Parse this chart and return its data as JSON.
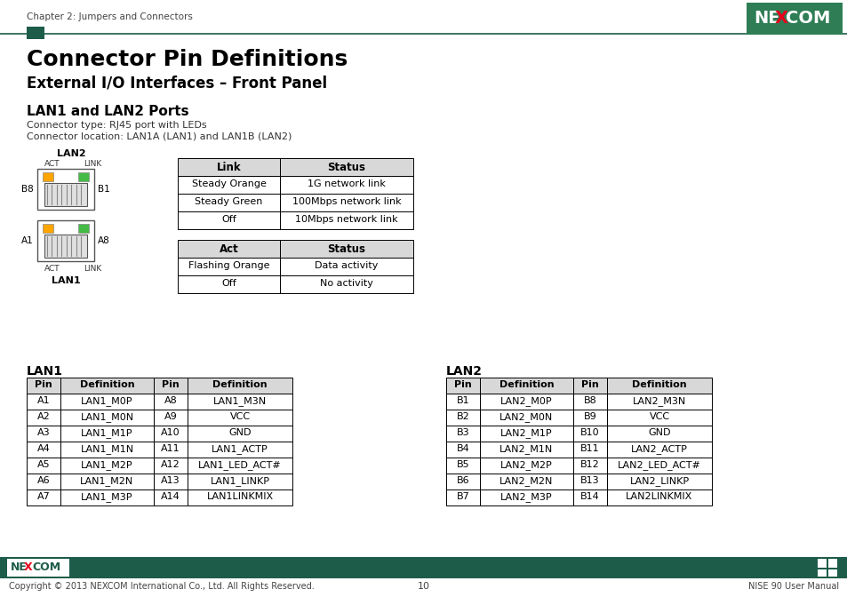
{
  "page_title": "Chapter 2: Jumpers and Connectors",
  "section_title": "Connector Pin Definitions",
  "subsection_title": "External I/O Interfaces – Front Panel",
  "sub2_title": "LAN1 and LAN2 Ports",
  "connector_info1": "Connector type: RJ45 port with LEDs",
  "connector_info2": "Connector location: LAN1A (LAN1) and LAN1B (LAN2)",
  "link_table_header": [
    "Link",
    "Status"
  ],
  "link_table_data": [
    [
      "Steady Orange",
      "1G network link"
    ],
    [
      "Steady Green",
      "100Mbps network link"
    ],
    [
      "Off",
      "10Mbps network link"
    ]
  ],
  "act_table_header": [
    "Act",
    "Status"
  ],
  "act_table_data": [
    [
      "Flashing Orange",
      "Data activity"
    ],
    [
      "Off",
      "No activity"
    ]
  ],
  "lan1_title": "LAN1",
  "lan1_table_header": [
    "Pin",
    "Definition",
    "Pin",
    "Definition"
  ],
  "lan1_table_data": [
    [
      "A1",
      "LAN1_M0P",
      "A8",
      "LAN1_M3N"
    ],
    [
      "A2",
      "LAN1_M0N",
      "A9",
      "VCC"
    ],
    [
      "A3",
      "LAN1_M1P",
      "A10",
      "GND"
    ],
    [
      "A4",
      "LAN1_M1N",
      "A11",
      "LAN1_ACTP"
    ],
    [
      "A5",
      "LAN1_M2P",
      "A12",
      "LAN1_LED_ACT#"
    ],
    [
      "A6",
      "LAN1_M2N",
      "A13",
      "LAN1_LINKP"
    ],
    [
      "A7",
      "LAN1_M3P",
      "A14",
      "LAN1LINKMIX"
    ]
  ],
  "lan2_title": "LAN2",
  "lan2_table_header": [
    "Pin",
    "Definition",
    "Pin",
    "Definition"
  ],
  "lan2_table_data": [
    [
      "B1",
      "LAN2_M0P",
      "B8",
      "LAN2_M3N"
    ],
    [
      "B2",
      "LAN2_M0N",
      "B9",
      "VCC"
    ],
    [
      "B3",
      "LAN2_M1P",
      "B10",
      "GND"
    ],
    [
      "B4",
      "LAN2_M1N",
      "B11",
      "LAN2_ACTP"
    ],
    [
      "B5",
      "LAN2_M2P",
      "B12",
      "LAN2_LED_ACT#"
    ],
    [
      "B6",
      "LAN2_M2N",
      "B13",
      "LAN2_LINKP"
    ],
    [
      "B7",
      "LAN2_M3P",
      "B14",
      "LAN2LINKMIX"
    ]
  ],
  "dark_green": "#1e5c4a",
  "header_bg": "#d8d8d8",
  "page_num": "10",
  "footer_left": "Copyright © 2013 NEXCOM International Co., Ltd. All Rights Reserved.",
  "footer_right": "NISE 90 User Manual",
  "nexcom_logo_bg": "#2d7a55"
}
